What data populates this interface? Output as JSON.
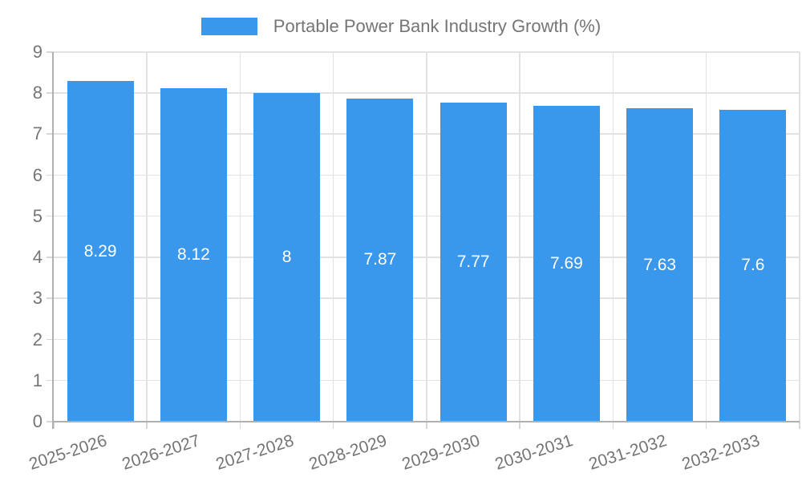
{
  "chart_data": {
    "type": "bar",
    "title": "Portable Power Bank Industry Growth (%)",
    "series_name": "Portable Power Bank Industry Growth (%)",
    "categories": [
      "2025-2026",
      "2026-2027",
      "2027-2028",
      "2028-2029",
      "2029-2030",
      "2030-2031",
      "2031-2032",
      "2032-2033"
    ],
    "values": [
      8.29,
      8.12,
      8,
      7.87,
      7.77,
      7.69,
      7.63,
      7.6
    ],
    "value_labels": [
      "8.29",
      "8.12",
      "8",
      "7.87",
      "7.77",
      "7.69",
      "7.63",
      "7.6"
    ],
    "xlabel": "",
    "ylabel": "",
    "ylim": [
      0,
      9
    ],
    "y_ticks": [
      "0",
      "1",
      "2",
      "3",
      "4",
      "5",
      "6",
      "7",
      "8",
      "9"
    ],
    "grid": true,
    "legend_position": "top-center",
    "value_label_position": "bar-center",
    "colors": {
      "bar": "#3998EB",
      "grid": "#e2e2e2",
      "tick": "#d6d6d6",
      "axis": "#b0b0b0",
      "label_text": "#757575",
      "value_text": "#ffffff",
      "background": "#ffffff"
    }
  }
}
